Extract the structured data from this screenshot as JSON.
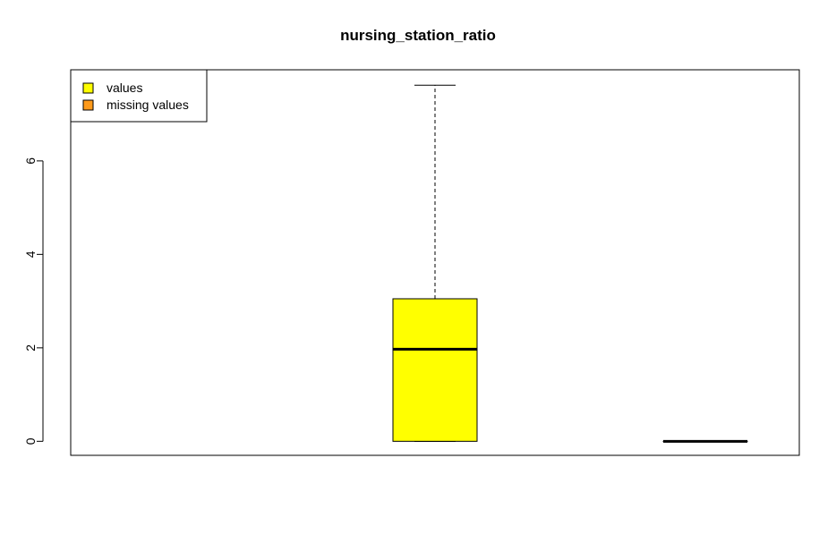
{
  "chart_data": {
    "type": "boxplot",
    "title": "nursing_station_ratio",
    "xlabel": "",
    "ylabel": "",
    "ylim": [
      -0.3,
      7.95
    ],
    "yticks": [
      0,
      2,
      4,
      6
    ],
    "grid": false,
    "legend": {
      "placement": "top-left",
      "entries": [
        {
          "label": "values",
          "color": "#ffff00"
        },
        {
          "label": "missing values",
          "color": "#ff9a1a"
        }
      ]
    },
    "boxes": [
      {
        "name": "values",
        "color": "#ffff00",
        "min": 0,
        "q1": 0,
        "median": 1.97,
        "q3": 3.05,
        "max": 7.62
      },
      {
        "name": "missing values",
        "color": "#ff9a1a",
        "min": 0,
        "q1": 0,
        "median": 0,
        "q3": 0,
        "max": 0
      }
    ]
  }
}
